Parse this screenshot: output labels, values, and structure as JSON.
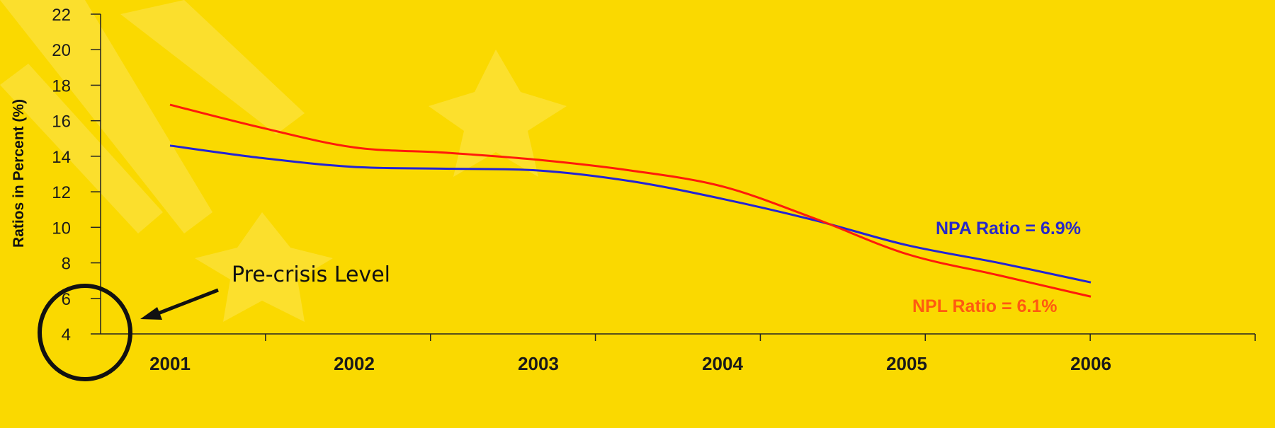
{
  "chart_data": {
    "type": "line",
    "x": [
      2001,
      2001.5,
      2002,
      2002.5,
      2003,
      2003.5,
      2004,
      2004.5,
      2005,
      2005.5,
      2006
    ],
    "categories": [
      "2001",
      "2002",
      "2003",
      "2004",
      "2005",
      "2006"
    ],
    "ylabel": "Ratios in Percent (%)",
    "ylim": [
      4,
      22
    ],
    "yticks": [
      "4",
      "6",
      "8",
      "10",
      "12",
      "14",
      "16",
      "18",
      "20",
      "22"
    ],
    "grid": false,
    "series": [
      {
        "name": "NPL Ratio",
        "label": "NPL Ratio = 6.1%",
        "color": "#FF1A0A",
        "label_color": "#FF5A10",
        "values": [
          16.9,
          15.6,
          14.5,
          14.2,
          13.8,
          13.2,
          12.3,
          10.5,
          8.5,
          7.3,
          6.1
        ]
      },
      {
        "name": "NPA Ratio",
        "label": "NPA Ratio = 6.9%",
        "color": "#2323D6",
        "label_color": "#2828C8",
        "values": [
          14.6,
          13.9,
          13.4,
          13.3,
          13.2,
          12.6,
          11.6,
          10.4,
          9.0,
          8.0,
          6.9
        ]
      }
    ],
    "annotations": [
      {
        "text": "Pre-crisis Level"
      }
    ]
  }
}
